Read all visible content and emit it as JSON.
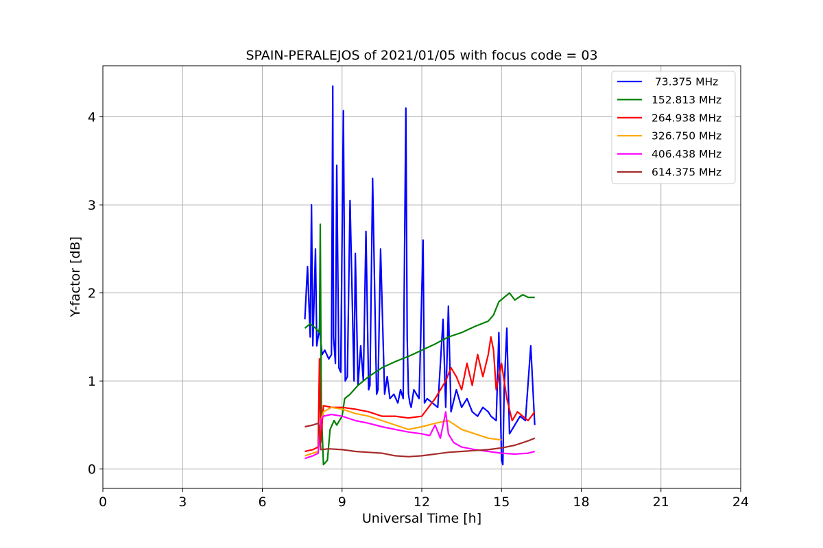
{
  "chart_data": {
    "type": "line",
    "title": "SPAIN-PERALEJOS of 2021/01/05 with focus code = 03",
    "xlabel": "Universal Time [h]",
    "ylabel": "Y-factor [dB]",
    "xlim": [
      0,
      24
    ],
    "ylim": [
      -0.22,
      4.58
    ],
    "xticks": [
      0,
      3,
      6,
      9,
      12,
      15,
      18,
      21,
      24
    ],
    "xtick_labels": [
      "0",
      "3",
      "6",
      "9",
      "12",
      "15",
      "18",
      "21",
      "24"
    ],
    "yticks": [
      0,
      1,
      2,
      3,
      4
    ],
    "ytick_labels": [
      "0",
      "1",
      "2",
      "3",
      "4"
    ],
    "grid": true,
    "legend_position": "top-right",
    "series": [
      {
        "name": " 73.375 MHz",
        "color": "#0000ff",
        "x": [
          7.6,
          7.7,
          7.8,
          7.85,
          7.9,
          8.0,
          8.05,
          8.15,
          8.25,
          8.35,
          8.5,
          8.6,
          8.65,
          8.68,
          8.75,
          8.8,
          8.88,
          8.95,
          9.05,
          9.12,
          9.2,
          9.3,
          9.45,
          9.5,
          9.6,
          9.7,
          9.8,
          9.9,
          10.0,
          10.05,
          10.15,
          10.3,
          10.35,
          10.45,
          10.6,
          10.7,
          10.8,
          10.95,
          11.1,
          11.2,
          11.3,
          11.4,
          11.45,
          11.5,
          11.55,
          11.6,
          11.7,
          11.9,
          12.05,
          12.1,
          12.2,
          12.4,
          12.6,
          12.8,
          12.9,
          13.0,
          13.1,
          13.3,
          13.5,
          13.7,
          13.9,
          14.1,
          14.3,
          14.5,
          14.6,
          14.8,
          14.9,
          15.0,
          15.05,
          15.1,
          15.2,
          15.3,
          15.5,
          15.7,
          15.9,
          16.1,
          16.25
        ],
        "y": [
          1.7,
          2.3,
          1.5,
          3.0,
          1.4,
          2.5,
          1.4,
          1.6,
          1.3,
          1.35,
          1.25,
          1.3,
          4.35,
          1.5,
          1.2,
          3.45,
          1.15,
          1.1,
          4.07,
          1.0,
          1.05,
          3.05,
          1.0,
          2.45,
          0.95,
          1.4,
          1.0,
          2.7,
          0.9,
          0.95,
          3.3,
          0.85,
          0.9,
          2.5,
          0.85,
          1.05,
          0.8,
          0.85,
          0.75,
          0.9,
          0.8,
          4.1,
          1.5,
          0.85,
          0.75,
          0.7,
          0.9,
          0.8,
          2.6,
          0.75,
          0.8,
          0.75,
          0.7,
          1.7,
          0.7,
          1.85,
          0.65,
          0.9,
          0.7,
          0.8,
          0.65,
          0.6,
          0.7,
          0.65,
          0.6,
          0.55,
          1.55,
          0.1,
          0.05,
          0.9,
          1.6,
          0.4,
          0.5,
          0.6,
          0.55,
          1.4,
          0.5
        ]
      },
      {
        "name": "152.813 MHz",
        "color": "#008000",
        "x": [
          7.6,
          7.8,
          8.0,
          8.15,
          8.18,
          8.22,
          8.3,
          8.45,
          8.55,
          8.7,
          8.8,
          9.0,
          9.1,
          9.3,
          9.6,
          10.0,
          10.5,
          11.0,
          11.5,
          12.0,
          12.5,
          13.0,
          13.5,
          14.0,
          14.5,
          14.7,
          14.9,
          15.1,
          15.3,
          15.5,
          15.8,
          16.0,
          16.25
        ],
        "y": [
          1.6,
          1.65,
          1.6,
          1.55,
          2.78,
          0.7,
          0.05,
          0.1,
          0.45,
          0.55,
          0.5,
          0.6,
          0.8,
          0.85,
          0.95,
          1.05,
          1.15,
          1.22,
          1.28,
          1.35,
          1.42,
          1.5,
          1.55,
          1.62,
          1.68,
          1.75,
          1.9,
          1.95,
          2.0,
          1.92,
          1.98,
          1.95,
          1.95
        ]
      },
      {
        "name": "264.938 MHz",
        "color": "#ff0000",
        "x": [
          7.6,
          7.9,
          8.1,
          8.15,
          8.2,
          8.3,
          8.6,
          9.0,
          9.5,
          10.0,
          10.5,
          11.0,
          11.5,
          12.0,
          12.3,
          12.5,
          12.7,
          12.9,
          13.1,
          13.3,
          13.5,
          13.7,
          13.9,
          14.1,
          14.3,
          14.5,
          14.6,
          14.7,
          14.8,
          15.0,
          15.2,
          15.4,
          15.6,
          15.8,
          16.0,
          16.25
        ],
        "y": [
          0.2,
          0.22,
          0.25,
          1.25,
          0.3,
          0.72,
          0.7,
          0.7,
          0.68,
          0.65,
          0.6,
          0.6,
          0.58,
          0.6,
          0.72,
          0.8,
          0.9,
          1.0,
          1.15,
          1.05,
          0.9,
          1.2,
          0.95,
          1.3,
          1.05,
          1.3,
          1.5,
          1.35,
          0.9,
          1.2,
          0.8,
          0.55,
          0.65,
          0.6,
          0.55,
          0.65
        ]
      },
      {
        "name": "326.750 MHz",
        "color": "#ffa500",
        "x": [
          7.6,
          7.9,
          8.1,
          8.2,
          8.3,
          8.6,
          9.0,
          9.5,
          10.0,
          10.5,
          11.0,
          11.5,
          12.0,
          12.5,
          13.0,
          13.5,
          14.0,
          14.5,
          15.0
        ],
        "y": [
          0.15,
          0.18,
          0.2,
          0.55,
          0.65,
          0.7,
          0.68,
          0.63,
          0.6,
          0.55,
          0.5,
          0.45,
          0.48,
          0.52,
          0.55,
          0.45,
          0.4,
          0.35,
          0.33
        ]
      },
      {
        "name": "406.438 MHz",
        "color": "#ff00ff",
        "x": [
          7.6,
          7.9,
          8.1,
          8.2,
          8.3,
          8.6,
          9.0,
          9.5,
          10.0,
          10.5,
          11.0,
          11.5,
          12.0,
          12.3,
          12.5,
          12.7,
          12.9,
          13.0,
          13.2,
          13.5,
          14.0,
          14.5,
          15.0,
          15.5,
          16.0,
          16.25
        ],
        "y": [
          0.12,
          0.15,
          0.18,
          0.55,
          0.6,
          0.62,
          0.6,
          0.55,
          0.52,
          0.48,
          0.45,
          0.42,
          0.4,
          0.38,
          0.5,
          0.35,
          0.65,
          0.4,
          0.3,
          0.25,
          0.22,
          0.2,
          0.18,
          0.17,
          0.18,
          0.2
        ]
      },
      {
        "name": "614.375 MHz",
        "color": "#a52a2a",
        "x": [
          7.6,
          7.9,
          8.1,
          8.15,
          8.2,
          8.5,
          9.0,
          9.5,
          10.0,
          10.5,
          11.0,
          11.5,
          12.0,
          12.5,
          13.0,
          13.5,
          14.0,
          14.5,
          15.0,
          15.5,
          16.0,
          16.25
        ],
        "y": [
          0.48,
          0.5,
          0.52,
          0.48,
          0.22,
          0.23,
          0.22,
          0.2,
          0.19,
          0.18,
          0.15,
          0.14,
          0.15,
          0.17,
          0.19,
          0.2,
          0.21,
          0.22,
          0.24,
          0.27,
          0.32,
          0.35
        ]
      }
    ]
  }
}
